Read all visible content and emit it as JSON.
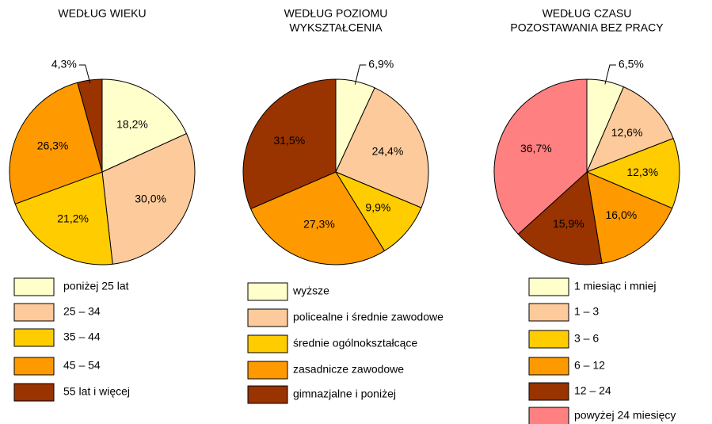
{
  "chart_data": [
    {
      "type": "pie",
      "title": [
        "WEDŁUG WIEKU"
      ],
      "categories": [
        "poniżej 25 lat",
        "25 – 34",
        "35 – 44",
        "45 – 54",
        "55 lat i więcej"
      ],
      "values": [
        18.2,
        30.0,
        21.2,
        26.3,
        4.3
      ],
      "value_labels": [
        "18,2%",
        "30,0%",
        "21,2%",
        "26,3%",
        "4,3%"
      ],
      "colors": [
        "#ffffcc",
        "#fdca9b",
        "#ffcc00",
        "#ff9900",
        "#993300"
      ]
    },
    {
      "type": "pie",
      "title": [
        "WEDŁUG POZIOMU",
        "WYKSZTAŁCENIA"
      ],
      "categories": [
        "wyższe",
        "policealne i średnie zawodowe",
        "średnie ogólnokształcące",
        "zasadnicze zawodowe",
        "gimnazjalne i poniżej"
      ],
      "values": [
        6.9,
        24.4,
        9.9,
        27.3,
        31.5
      ],
      "value_labels": [
        "6,9%",
        "24,4%",
        "9,9%",
        "27,3%",
        "31,5%"
      ],
      "colors": [
        "#ffffcc",
        "#fdca9b",
        "#ffcc00",
        "#ff9900",
        "#993300"
      ]
    },
    {
      "type": "pie",
      "title": [
        "WEDŁUG CZASU",
        "POZOSTAWANIA BEZ PRACY"
      ],
      "categories": [
        "1 miesiąc i mniej",
        "1 – 3",
        "3 – 6",
        "6 – 12",
        "12 – 24",
        "powyżej 24 miesięcy"
      ],
      "values": [
        6.5,
        12.6,
        12.3,
        16.0,
        15.9,
        36.7
      ],
      "value_labels": [
        "6,5%",
        "12,6%",
        "12,3%",
        "16,0%",
        "15,9%",
        "36,7%"
      ],
      "colors": [
        "#ffffcc",
        "#fdca9b",
        "#ffcc00",
        "#ff9900",
        "#993300",
        "#ff8080"
      ]
    }
  ]
}
